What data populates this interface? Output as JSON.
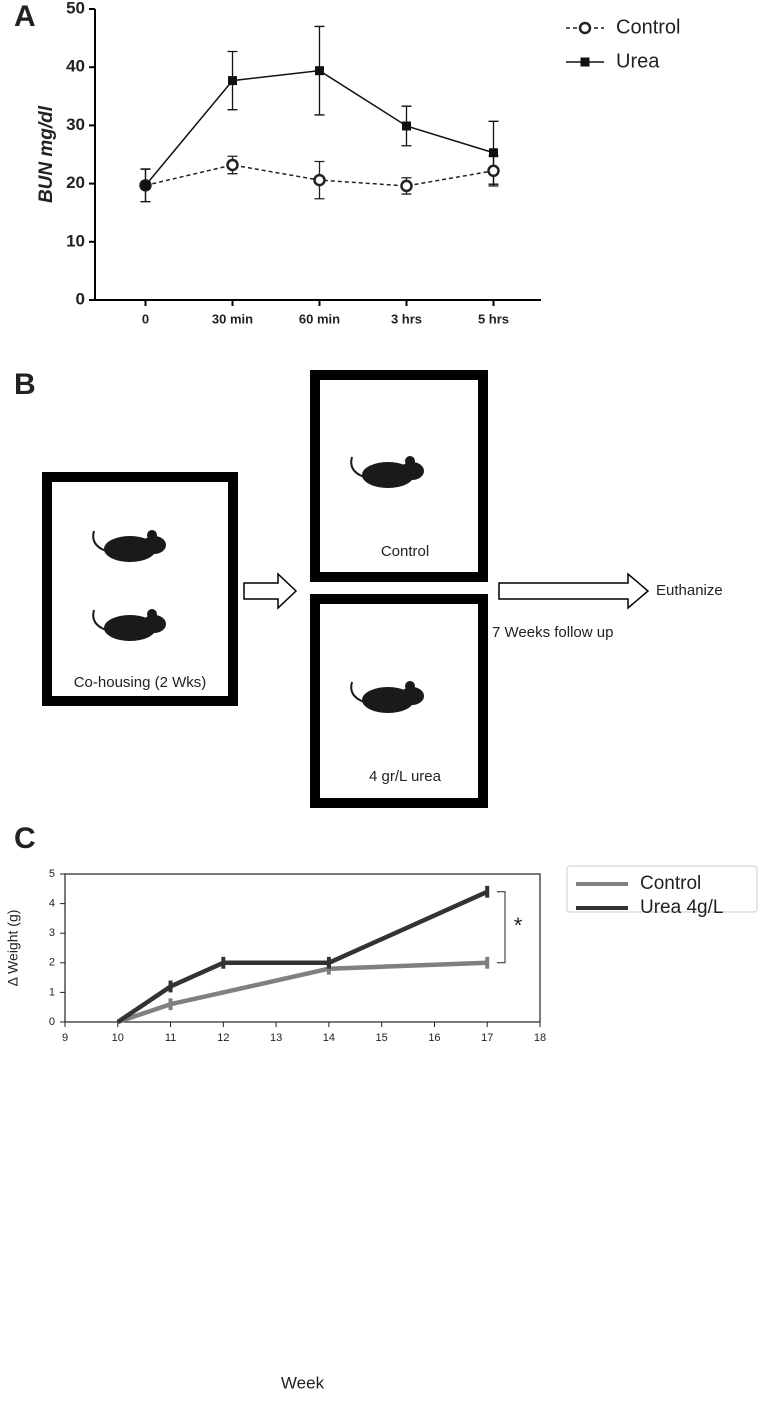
{
  "panels": [
    "A",
    "B",
    "C"
  ],
  "chart_data": [
    {
      "type": "line",
      "y_label": "BUN mg/dl",
      "categories": [
        "0",
        "30 min",
        "60 min",
        "3 hrs",
        "5 hrs"
      ],
      "series": [
        {
          "name": "Control",
          "color": "#222222",
          "marker": "circle",
          "dash": true,
          "values": [
            19.7,
            23.2,
            20.6,
            19.6,
            22.2
          ],
          "errors": [
            2.8,
            1.5,
            3.2,
            1.4,
            2.6
          ]
        },
        {
          "name": "Urea",
          "color": "#111111",
          "marker": "square",
          "dash": false,
          "values": [
            19.7,
            37.7,
            39.4,
            29.9,
            25.3
          ],
          "errors": [
            2.8,
            5.0,
            7.6,
            3.4,
            5.4
          ]
        }
      ],
      "ylim": [
        0,
        50
      ],
      "yticks": [
        0,
        10,
        20,
        30,
        40,
        50
      ],
      "legend": "top-right"
    },
    {
      "type": "line",
      "x_label": "Week",
      "y_label": "Δ Weight (g)",
      "series": [
        {
          "name": "Control",
          "color": "#808080",
          "x": [
            10,
            11,
            14,
            17
          ],
          "values": [
            0,
            0.6,
            1.8,
            2.0
          ],
          "errors": [
            null,
            0.2,
            0.2,
            0.2
          ]
        },
        {
          "name": "Urea 4g/L",
          "color": "#333333",
          "x": [
            10,
            11,
            12,
            14,
            17
          ],
          "values": [
            0,
            1.2,
            2.0,
            2.0,
            4.4
          ],
          "errors": [
            null,
            0.2,
            0.2,
            0.2,
            0.2
          ]
        }
      ],
      "xlim": [
        9,
        18
      ],
      "xticks": [
        9,
        10,
        11,
        12,
        13,
        14,
        15,
        16,
        17,
        18
      ],
      "ylim": [
        0,
        5
      ],
      "yticks": [
        0,
        1,
        2,
        3,
        4,
        5
      ],
      "annotation": "*",
      "legend": "top-right"
    }
  ],
  "diagram": {
    "cohousing": "Co-housing (2 Wks)",
    "control": "Control",
    "urea": "4 gr/L urea",
    "follow_up": "7 Weeks follow up",
    "end": "Euthanize"
  }
}
